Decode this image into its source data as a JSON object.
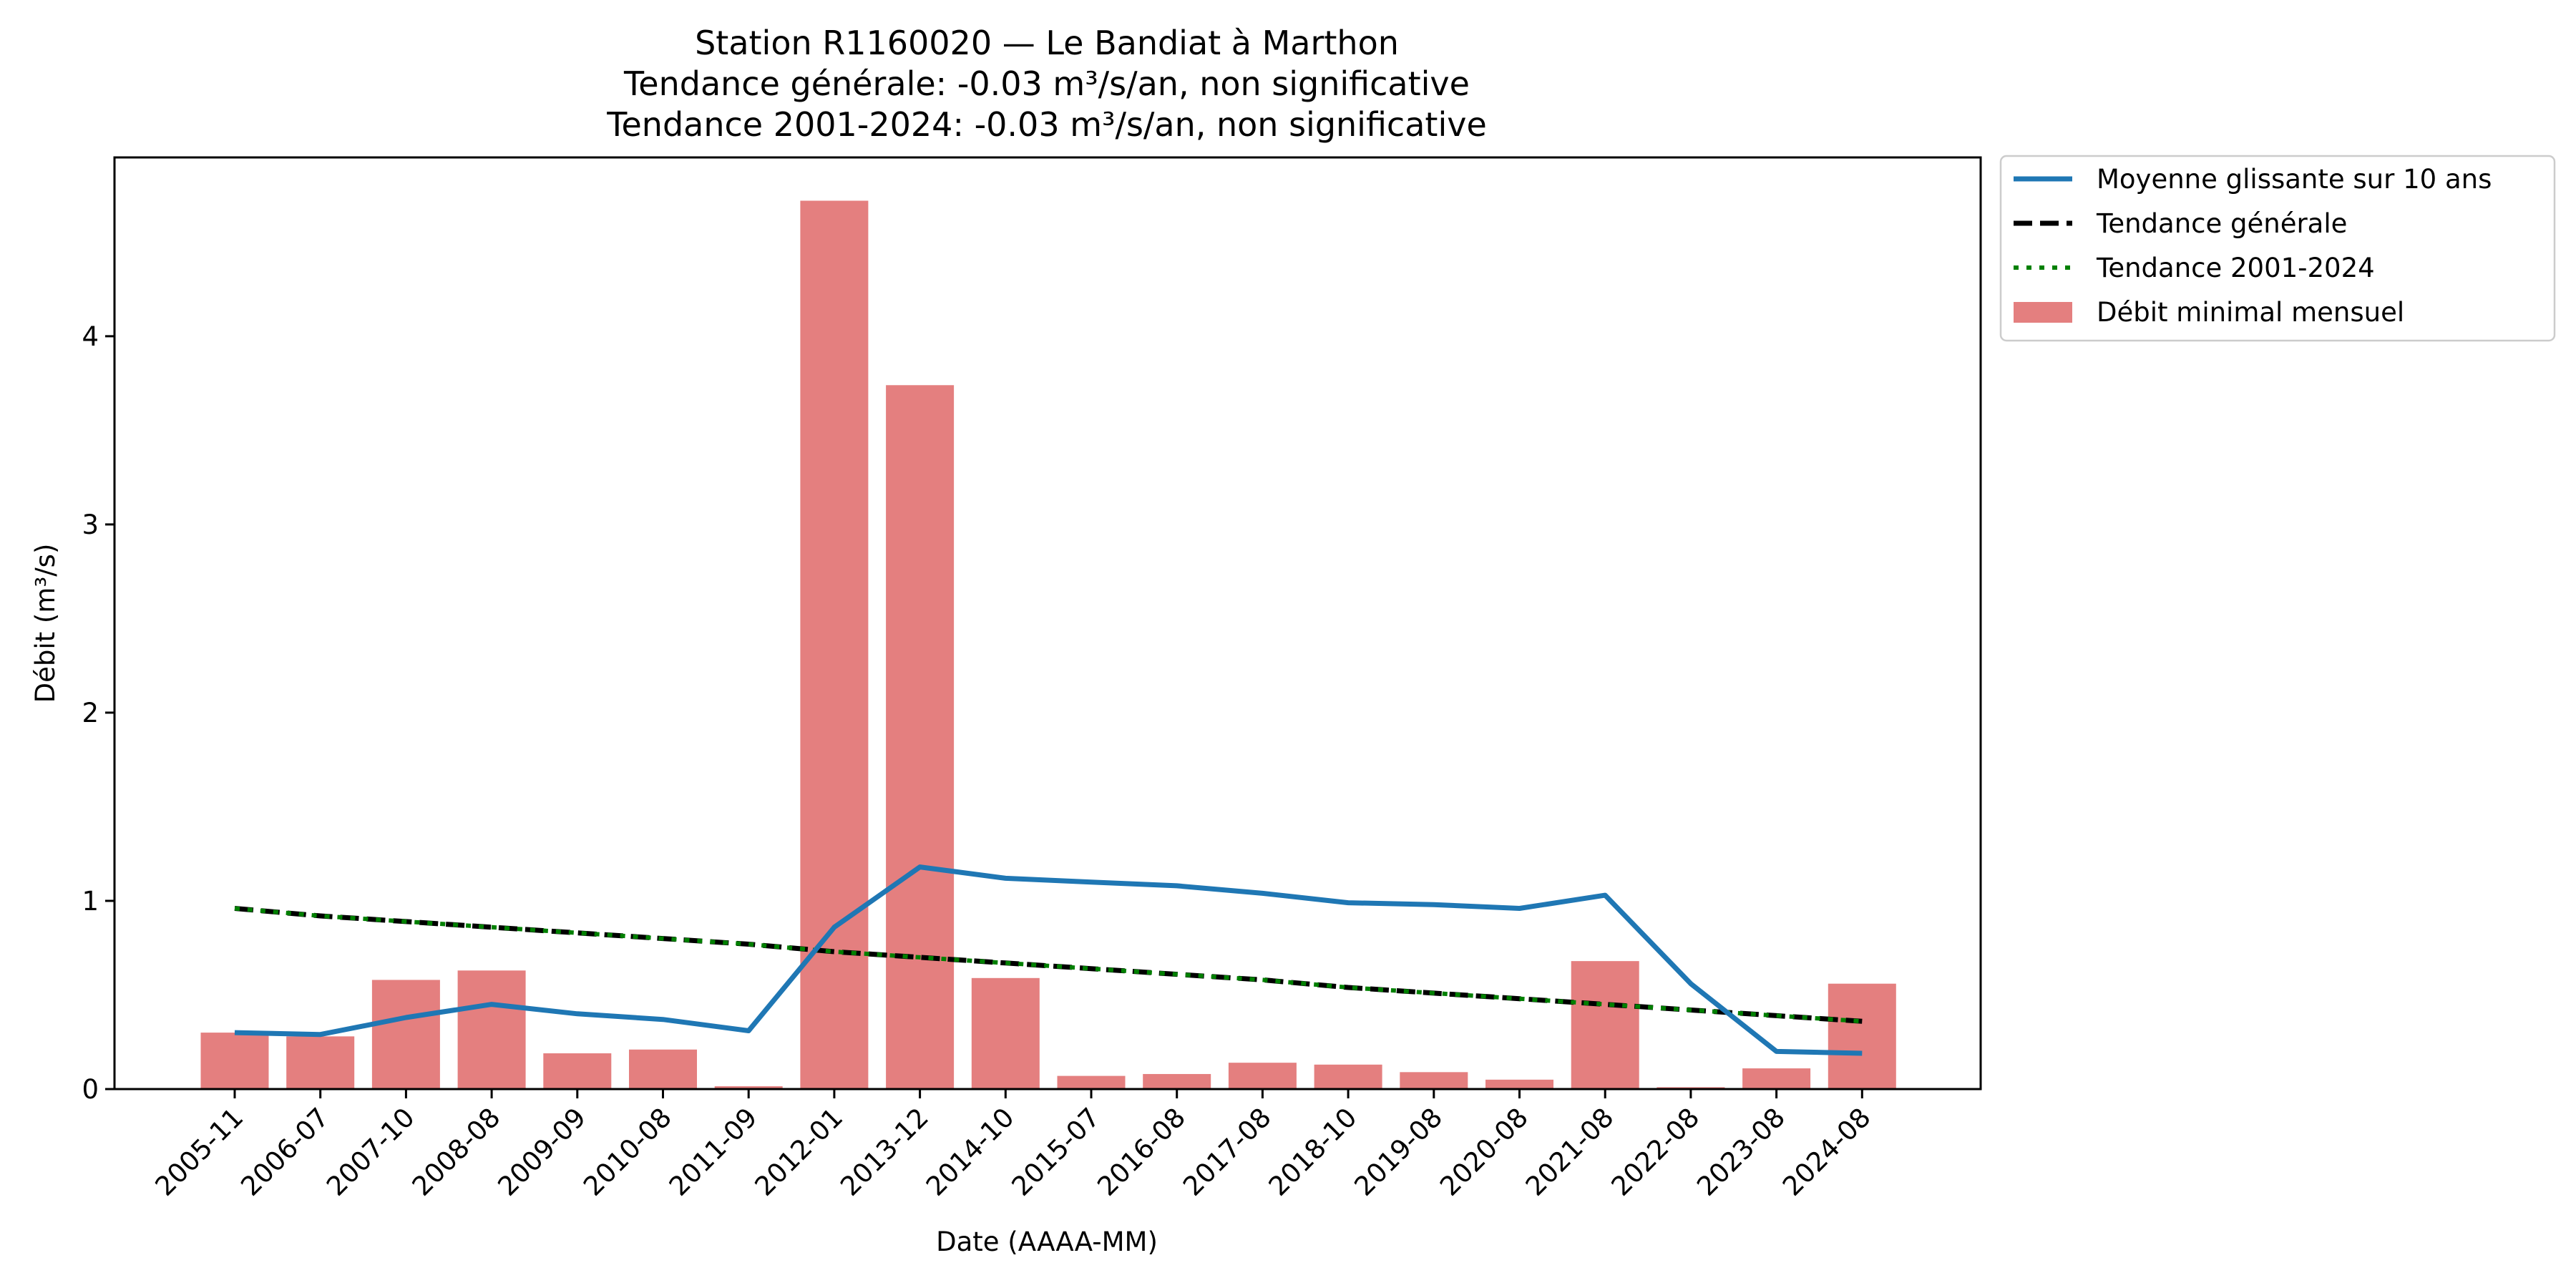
{
  "chart_data": {
    "type": "bar",
    "title_lines": [
      "Station R1160020 — Le Bandiat à Marthon",
      "Tendance générale: -0.03 m³/s/an, non significative",
      "Tendance 2001-2024: -0.03 m³/s/an, non significative"
    ],
    "xlabel": "Date (AAAA-MM)",
    "ylabel": "Débit (m³/s)",
    "categories": [
      "2005-11",
      "2006-07",
      "2007-10",
      "2008-08",
      "2009-09",
      "2010-08",
      "2011-09",
      "2012-01",
      "2013-12",
      "2014-10",
      "2015-07",
      "2016-08",
      "2017-08",
      "2018-10",
      "2019-08",
      "2020-08",
      "2021-08",
      "2022-08",
      "2023-08",
      "2024-08"
    ],
    "ylim": [
      0,
      4.95
    ],
    "yticks": [
      0,
      1,
      2,
      3,
      4
    ],
    "grid": false,
    "legend_position": "outside-top-right",
    "series": [
      {
        "name": "Débit minimal mensuel",
        "kind": "bar",
        "color": "#e47f7f",
        "values": [
          0.3,
          0.28,
          0.58,
          0.63,
          0.19,
          0.21,
          0.015,
          4.72,
          3.74,
          0.59,
          0.07,
          0.08,
          0.14,
          0.13,
          0.09,
          0.05,
          0.68,
          0.01,
          0.11,
          0.56
        ]
      },
      {
        "name": "Moyenne glissante sur 10 ans",
        "kind": "line",
        "style": "solid",
        "color": "#1f77b4",
        "values": [
          0.3,
          0.29,
          0.38,
          0.45,
          0.4,
          0.37,
          0.31,
          0.86,
          1.18,
          1.12,
          1.1,
          1.08,
          1.04,
          0.99,
          0.98,
          0.96,
          1.03,
          0.56,
          0.2,
          0.19
        ]
      },
      {
        "name": "Tendance générale",
        "kind": "line",
        "style": "dashed",
        "color": "#000000",
        "values": [
          0.96,
          0.92,
          0.89,
          0.86,
          0.83,
          0.8,
          0.77,
          0.73,
          0.7,
          0.67,
          0.64,
          0.61,
          0.58,
          0.54,
          0.51,
          0.48,
          0.45,
          0.42,
          0.39,
          0.36
        ]
      },
      {
        "name": "Tendance 2001-2024",
        "kind": "line",
        "style": "dotted",
        "color": "#008000",
        "values": [
          0.96,
          0.92,
          0.89,
          0.86,
          0.83,
          0.8,
          0.77,
          0.73,
          0.7,
          0.67,
          0.64,
          0.61,
          0.58,
          0.54,
          0.51,
          0.48,
          0.45,
          0.42,
          0.39,
          0.36
        ]
      }
    ],
    "legend_order": [
      "Moyenne glissante sur 10 ans",
      "Tendance générale",
      "Tendance 2001-2024",
      "Débit minimal mensuel"
    ]
  }
}
